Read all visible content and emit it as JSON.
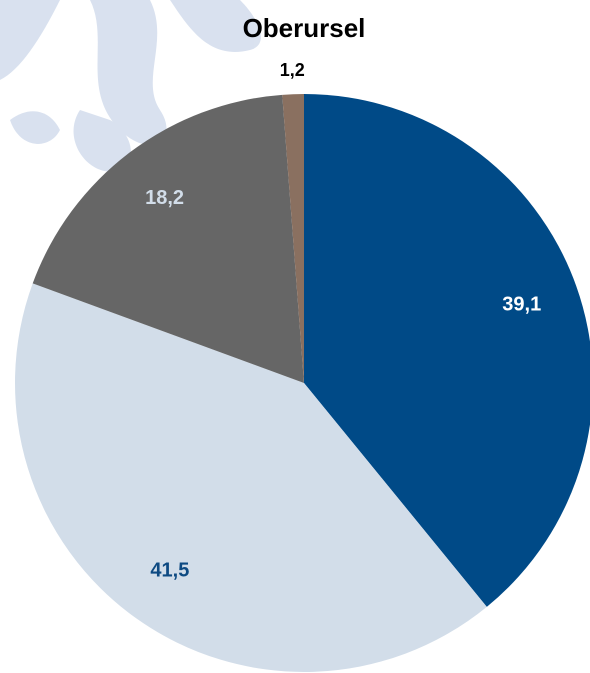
{
  "chart_data": {
    "type": "pie",
    "title": "Oberursel",
    "values": [
      39.1,
      41.5,
      18.2,
      1.2
    ],
    "value_labels": [
      "39,1",
      "41,5",
      "18,2",
      "1,2"
    ],
    "colors": [
      "#004a87",
      "#d2dde9",
      "#666666",
      "#8a7060"
    ],
    "label_colors": [
      "#ffffff",
      "#0e4a82",
      "#d2dde9",
      "#000000"
    ],
    "start_angle": 0,
    "direction": "clockwise"
  }
}
